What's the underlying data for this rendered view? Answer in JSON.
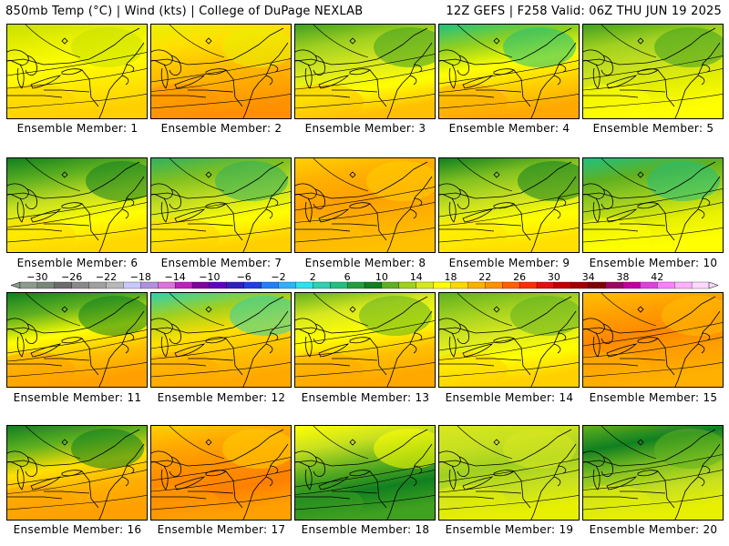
{
  "header": {
    "left": "850mb Temp (°C) | Wind (kts) | College of DuPage NEXLAB",
    "right": "12Z GEFS | F258 Valid: 06Z THU JUN 19 2025"
  },
  "colorbar": {
    "labels": [
      "−30",
      "−26",
      "−22",
      "−18",
      "−14",
      "−10",
      "−6",
      "−2",
      "2",
      "6",
      "10",
      "14",
      "18",
      "22",
      "26",
      "30",
      "34",
      "38",
      "42"
    ],
    "colors": [
      "#8c9c8c",
      "#7a867a",
      "#6c6c6c",
      "#8a8a8a",
      "#a0a0a0",
      "#b8b8b8",
      "#c8c8ff",
      "#b090e0",
      "#e070e0",
      "#c020c0",
      "#8000a0",
      "#6000c0",
      "#3020c0",
      "#2040e0",
      "#2080ff",
      "#30b0ff",
      "#30e0f0",
      "#30d0b0",
      "#20c080",
      "#20a040",
      "#108020",
      "#60b020",
      "#a0d020",
      "#d8e820",
      "#ffff00",
      "#ffd800",
      "#ffb000",
      "#ff9000",
      "#ff6000",
      "#ff3000",
      "#e01010",
      "#c00000",
      "#a00000",
      "#800000",
      "#a00060",
      "#c000a0",
      "#e040e0",
      "#ff80ff",
      "#ffb0ff",
      "#ffd8ff"
    ]
  },
  "members": [
    {
      "caption": "Ensemble Member: 1",
      "colors": [
        "#c8e000",
        "#e8f000",
        "#ffff00",
        "#ffe800",
        "#ffd000"
      ]
    },
    {
      "caption": "Ensemble Member: 2",
      "colors": [
        "#e8f000",
        "#ffe000",
        "#ffc000",
        "#ffa800",
        "#ff9000"
      ]
    },
    {
      "caption": "Ensemble Member: 3",
      "colors": [
        "#40a020",
        "#a0d020",
        "#d8e820",
        "#ffff00",
        "#ffc000"
      ]
    },
    {
      "caption": "Ensemble Member: 4",
      "colors": [
        "#20c080",
        "#90d020",
        "#ffff00",
        "#ffd000",
        "#ffa800"
      ]
    },
    {
      "caption": "Ensemble Member: 5",
      "colors": [
        "#40a020",
        "#a0d020",
        "#c8e020",
        "#e8f000",
        "#ffff00"
      ]
    },
    {
      "caption": "Ensemble Member: 6",
      "colors": [
        "#108020",
        "#60b020",
        "#c8e020",
        "#ffff00",
        "#ffd800"
      ]
    },
    {
      "caption": "Ensemble Member: 7",
      "colors": [
        "#30b060",
        "#80c020",
        "#c8e020",
        "#ffff00",
        "#ffd000"
      ]
    },
    {
      "caption": "Ensemble Member: 8",
      "colors": [
        "#ffd000",
        "#ffb000",
        "#ffa000",
        "#ffb000",
        "#ffc000"
      ]
    },
    {
      "caption": "Ensemble Member: 9",
      "colors": [
        "#108020",
        "#80c020",
        "#c8e020",
        "#ffff00",
        "#ffe000"
      ]
    },
    {
      "caption": "Ensemble Member: 10",
      "colors": [
        "#20c080",
        "#60b020",
        "#a0d020",
        "#e8f000",
        "#ffff00"
      ]
    },
    {
      "caption": "Ensemble Member: 11",
      "colors": [
        "#108020",
        "#60b020",
        "#ffff00",
        "#ffc000",
        "#ffa000"
      ]
    },
    {
      "caption": "Ensemble Member: 12",
      "colors": [
        "#30d0b0",
        "#a0d020",
        "#ffe000",
        "#ffc000",
        "#ffa800"
      ]
    },
    {
      "caption": "Ensemble Member: 13",
      "colors": [
        "#60b020",
        "#d8e820",
        "#ffff00",
        "#ffc000",
        "#ffa800"
      ]
    },
    {
      "caption": "Ensemble Member: 14",
      "colors": [
        "#60b020",
        "#a0d020",
        "#d8e820",
        "#ffff00",
        "#ffd000"
      ]
    },
    {
      "caption": "Ensemble Member: 15",
      "colors": [
        "#ffc000",
        "#ffa000",
        "#ff8800",
        "#ffa000",
        "#ffb000"
      ]
    },
    {
      "caption": "Ensemble Member: 16",
      "colors": [
        "#108020",
        "#60b020",
        "#ffe000",
        "#ffb000",
        "#ffa000"
      ]
    },
    {
      "caption": "Ensemble Member: 17",
      "colors": [
        "#ffd000",
        "#ffa800",
        "#ff9000",
        "#ff8000",
        "#ffa000"
      ]
    },
    {
      "caption": "Ensemble Member: 18",
      "colors": [
        "#ffff00",
        "#c8e020",
        "#60b020",
        "#108020",
        "#40a020"
      ]
    },
    {
      "caption": "Ensemble Member: 19",
      "colors": [
        "#d8e820",
        "#c8e020",
        "#a0d020",
        "#c8e020",
        "#e8f000"
      ]
    },
    {
      "caption": "Ensemble Member: 20",
      "colors": [
        "#60b020",
        "#108020",
        "#80c020",
        "#c8e020",
        "#e8f000"
      ]
    }
  ]
}
